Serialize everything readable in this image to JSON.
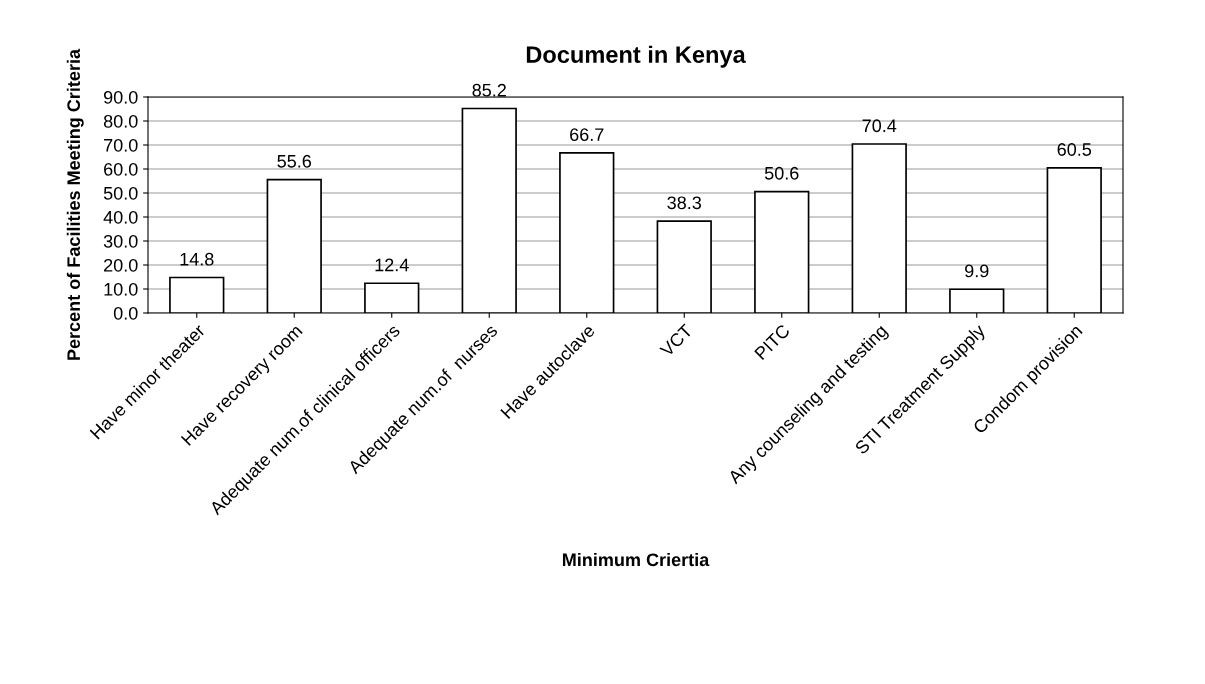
{
  "chart_data": {
    "type": "bar",
    "title": "Document in Kenya",
    "xlabel": "Minimum Criertia",
    "ylabel": "Percent of Facilities Meeting Criteria",
    "categories": [
      "Have minor theater",
      "Have recovery room",
      "Adequate num.of clinical officers",
      "Adequate num.of  nurses",
      "Have autoclave",
      "VCT",
      "PITC",
      "Any counseling and testing",
      "STI Treatment Supply",
      "Condom provision"
    ],
    "values": [
      14.8,
      55.6,
      12.4,
      85.2,
      66.7,
      38.3,
      50.6,
      70.4,
      9.9,
      60.5
    ],
    "color": "#ffffff",
    "ylim": [
      0,
      90
    ],
    "yticks": [
      {
        "value": 0,
        "label": "0.0"
      },
      {
        "value": 10,
        "label": "10.0"
      },
      {
        "value": 20,
        "label": "20.0"
      },
      {
        "value": 30,
        "label": "30.0"
      },
      {
        "value": 40,
        "label": "40.0"
      },
      {
        "value": 50,
        "label": "50.0"
      },
      {
        "value": 60,
        "label": "60.0"
      },
      {
        "value": 70,
        "label": "70.0"
      },
      {
        "value": 80,
        "label": "80.0"
      },
      {
        "value": 90,
        "label": "90.0"
      }
    ],
    "grid": "y",
    "data_labels": true
  }
}
